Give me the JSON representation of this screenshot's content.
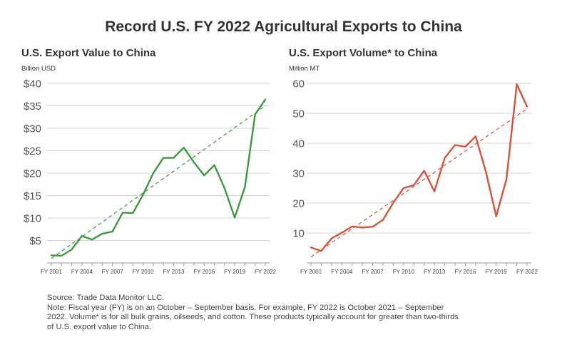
{
  "title": "Record U.S. FY 2022 Agricultural Exports to China",
  "chart_data": [
    {
      "type": "line",
      "title": "U.S. Export Value to China",
      "unit": "Billion USD",
      "x": [
        "FY 2001",
        "FY 2002",
        "FY 2003",
        "FY 2004",
        "FY 2005",
        "FY 2006",
        "FY 2007",
        "FY 2008",
        "FY 2009",
        "FY 2010",
        "FY 2011",
        "FY 2012",
        "FY 2013",
        "FY 2014",
        "FY 2015",
        "FY 2016",
        "FY 2017",
        "FY 2018",
        "FY 2019",
        "FY 2020",
        "FY 2021",
        "FY 2022"
      ],
      "xticks": [
        "FY 2001",
        "FY 2004",
        "FY 2007",
        "FY 2010",
        "FY 2013",
        "FY 2016",
        "FY 2019",
        "FY 2022"
      ],
      "yticks": [
        "$5",
        "$10",
        "$15",
        "$20",
        "$25",
        "$30",
        "$35",
        "$40"
      ],
      "ytick_values": [
        5,
        10,
        15,
        20,
        25,
        30,
        35,
        40
      ],
      "ylim": [
        0,
        40
      ],
      "series": [
        {
          "values": [
            1.7,
            1.6,
            3.0,
            6.0,
            5.2,
            6.5,
            7.0,
            11.2,
            11.1,
            15.2,
            20.0,
            23.4,
            23.4,
            25.7,
            22.4,
            19.5,
            21.8,
            16.6,
            10.1,
            16.9,
            33.1,
            36.4
          ],
          "color": "#3d9a3f"
        }
      ],
      "trend": {
        "start": 1.0,
        "end": 35.0,
        "color": "#3d9a3f"
      }
    },
    {
      "type": "line",
      "title": "U.S. Export Volume* to China",
      "unit": "Million MT",
      "x": [
        "FY 2001",
        "FY 2002",
        "FY 2003",
        "FY 2004",
        "FY 2005",
        "FY 2006",
        "FY 2007",
        "FY 2008",
        "FY 2009",
        "FY 2010",
        "FY 2011",
        "FY 2012",
        "FY 2013",
        "FY 2014",
        "FY 2015",
        "FY 2016",
        "FY 2017",
        "FY 2018",
        "FY 2019",
        "FY 2020",
        "FY 2021",
        "FY 2022"
      ],
      "xticks": [
        "FY 2001",
        "FY 2004",
        "FY 2007",
        "FY 2010",
        "FY 2013",
        "FY 2016",
        "FY 2019",
        "FY 2022"
      ],
      "yticks": [
        "10",
        "20",
        "30",
        "40",
        "50",
        "60"
      ],
      "ytick_values": [
        10,
        20,
        30,
        40,
        50,
        60
      ],
      "ylim": [
        0,
        60
      ],
      "series": [
        {
          "values": [
            5.2,
            4.0,
            8.2,
            10.1,
            12.2,
            11.8,
            12.1,
            14.4,
            20.1,
            25.0,
            26.0,
            30.8,
            23.9,
            35.1,
            39.4,
            38.8,
            42.3,
            30.4,
            15.6,
            28.0,
            59.7,
            52.2
          ],
          "color": "#d9533b"
        }
      ],
      "trend": {
        "start": 2.0,
        "end": 51.5,
        "color": "#d9533b"
      }
    }
  ],
  "source": "Source: Trade Data Monitor LLC.",
  "note_line1": "Note: Fiscal year (FY) is on an October – September basis. For example, FY 2022 is October 2021 – September",
  "note_line2": "2022. Volume* is for all bulk grains, oilseeds, and cotton. These products typically account for greater than two-thirds",
  "note_line3": "of U.S. export value to China."
}
